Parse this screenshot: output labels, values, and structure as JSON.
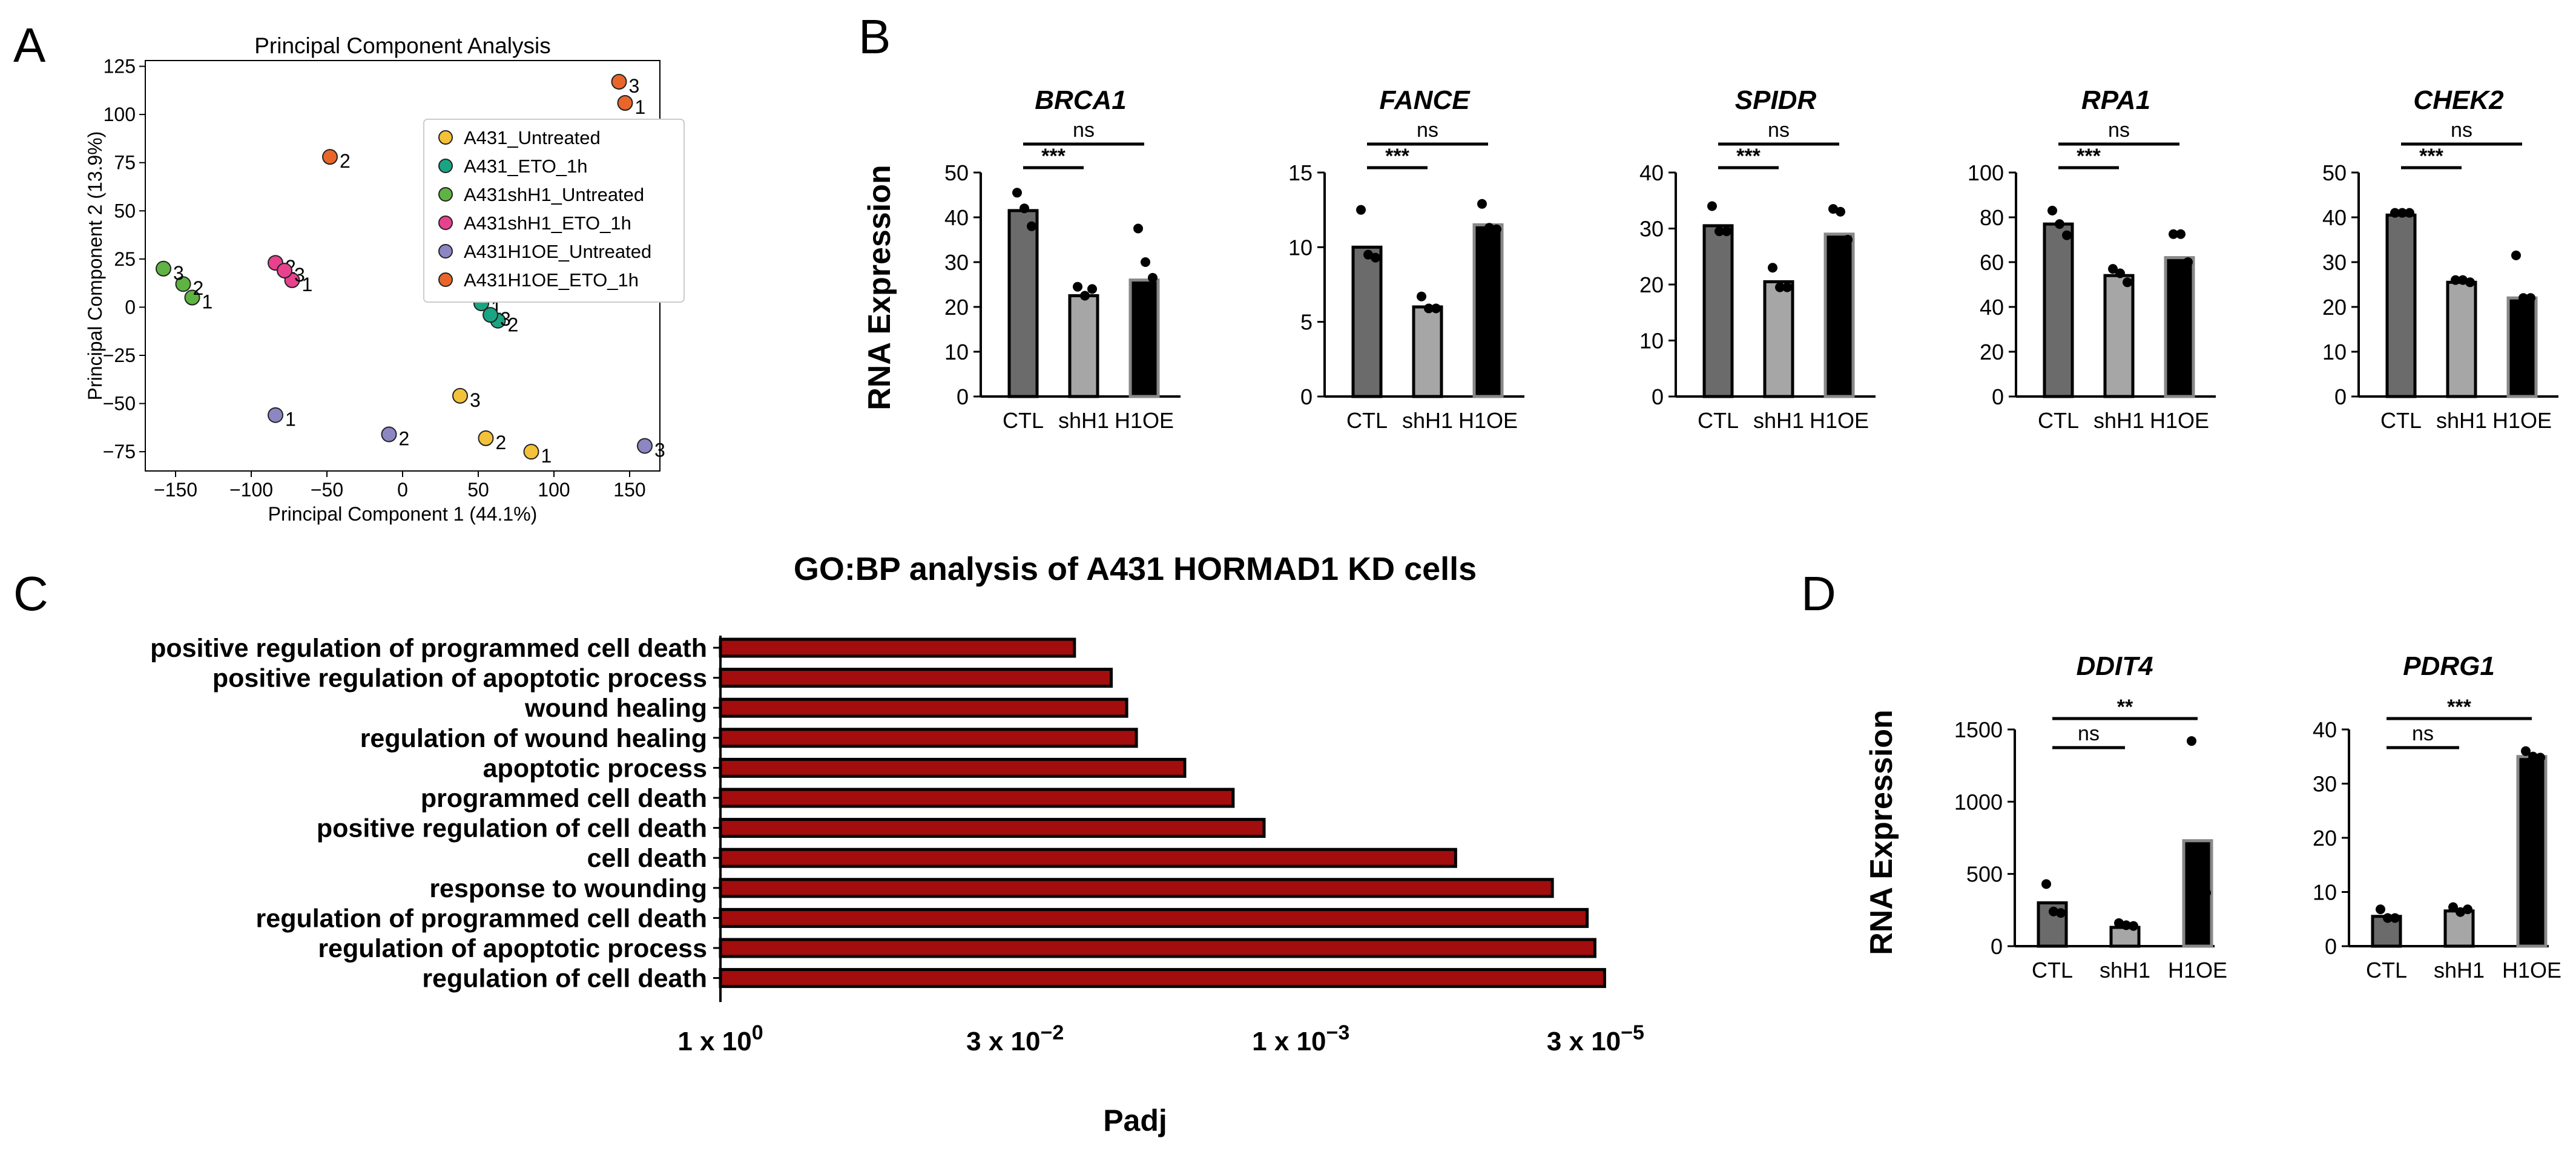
{
  "panel_letters": {
    "a": "A",
    "b": "B",
    "c": "C",
    "d": "D"
  },
  "chart_data": [
    {
      "type": "scatter",
      "id": "pca",
      "title": "Principal Component Analysis",
      "xlabel": "Principal Component 1 (44.1%)",
      "ylabel": "Principal Component 2 (13.9%)",
      "xlim": [
        -170,
        170
      ],
      "ylim": [
        -85,
        128
      ],
      "xticks": [
        -150,
        -100,
        -50,
        0,
        50,
        100,
        150
      ],
      "yticks": [
        125,
        100,
        75,
        50,
        25,
        0,
        -25,
        -50,
        -75
      ],
      "legend_position": "upper-right",
      "series": [
        {
          "name": "A431_Untreated",
          "color": "#f4c13a",
          "points": [
            {
              "x": 85,
              "y": -75,
              "label": "1"
            },
            {
              "x": 55,
              "y": -68,
              "label": "2"
            },
            {
              "x": 38,
              "y": -46,
              "label": "3"
            }
          ]
        },
        {
          "name": "A431_ETO_1h",
          "color": "#1aa582",
          "points": [
            {
              "x": 52,
              "y": 2,
              "label": "1"
            },
            {
              "x": 63,
              "y": -7,
              "label": "2"
            },
            {
              "x": 58,
              "y": -4,
              "label": "3"
            }
          ]
        },
        {
          "name": "A431shH1_Untreated",
          "color": "#5fb343",
          "points": [
            {
              "x": -139,
              "y": 5,
              "label": "1"
            },
            {
              "x": -145,
              "y": 12,
              "label": "2"
            },
            {
              "x": -158,
              "y": 20,
              "label": "3"
            }
          ]
        },
        {
          "name": "A431shH1_ETO_1h",
          "color": "#e8428e",
          "points": [
            {
              "x": -73,
              "y": 14,
              "label": "1"
            },
            {
              "x": -84,
              "y": 23,
              "label": "2"
            },
            {
              "x": -78,
              "y": 19,
              "label": "3"
            }
          ]
        },
        {
          "name": "A431H1OE_Untreated",
          "color": "#8c86c2",
          "points": [
            {
              "x": -84,
              "y": -56,
              "label": "1"
            },
            {
              "x": -9,
              "y": -66,
              "label": "2"
            },
            {
              "x": 160,
              "y": -72,
              "label": "3"
            }
          ]
        },
        {
          "name": "A431H1OE_ETO_1h",
          "color": "#e8662a",
          "points": [
            {
              "x": 147,
              "y": 106,
              "label": "1"
            },
            {
              "x": -48,
              "y": 78,
              "label": "2"
            },
            {
              "x": 143,
              "y": 117,
              "label": "3"
            }
          ]
        }
      ]
    },
    {
      "type": "bar",
      "id": "rna_b",
      "panel": "B",
      "ylabel": "RNA Expression",
      "categories": [
        "CTL",
        "shH1",
        "H1OE"
      ],
      "genes": [
        {
          "name": "BRCA1",
          "ymax": 50,
          "yticks": [
            0,
            10,
            20,
            30,
            40,
            50
          ],
          "values": [
            41.5,
            22.5,
            26
          ],
          "points": [
            [
              45.5,
              42,
              38
            ],
            [
              24.5,
              22.5,
              24
            ],
            [
              37.5,
              30,
              26.5
            ]
          ],
          "comparisons": [
            {
              "label": "***",
              "to": 1
            },
            {
              "label": "ns",
              "to": 2
            }
          ]
        },
        {
          "name": "FANCE",
          "ymax": 15,
          "yticks": [
            0,
            5,
            10,
            15
          ],
          "values": [
            10,
            6,
            11.5
          ],
          "points": [
            [
              12.5,
              9.5,
              9.3
            ],
            [
              6.7,
              5.9,
              5.9
            ],
            [
              12.9,
              11.3,
              11.2
            ]
          ],
          "comparisons": [
            {
              "label": "***",
              "to": 1
            },
            {
              "label": "ns",
              "to": 2
            }
          ]
        },
        {
          "name": "SPIDR",
          "ymax": 40,
          "yticks": [
            0,
            10,
            20,
            30,
            40
          ],
          "values": [
            30.5,
            20.5,
            29
          ],
          "points": [
            [
              34,
              29.5,
              29.5
            ],
            [
              23,
              19.5,
              19.5
            ],
            [
              33.5,
              33,
              28
            ]
          ],
          "comparisons": [
            {
              "label": "***",
              "to": 1
            },
            {
              "label": "ns",
              "to": 2
            }
          ]
        },
        {
          "name": "RPA1",
          "ymax": 100,
          "yticks": [
            0,
            20,
            40,
            60,
            80,
            100
          ],
          "values": [
            77,
            54,
            62
          ],
          "points": [
            [
              83,
              77,
              72
            ],
            [
              57,
              55,
              51
            ],
            [
              72.5,
              72.5,
              60
            ]
          ],
          "comparisons": [
            {
              "label": "***",
              "to": 1
            },
            {
              "label": "ns",
              "to": 2
            }
          ]
        },
        {
          "name": "CHEK2",
          "ymax": 50,
          "yticks": [
            0,
            10,
            20,
            30,
            40,
            50
          ],
          "values": [
            40.5,
            25.5,
            22
          ],
          "points": [
            [
              41,
              41,
              41
            ],
            [
              26,
              26,
              25.5
            ],
            [
              31.5,
              22,
              22
            ]
          ],
          "comparisons": [
            {
              "label": "***",
              "to": 1
            },
            {
              "label": "ns",
              "to": 2
            }
          ]
        }
      ]
    },
    {
      "type": "hbar",
      "id": "go",
      "title": "GO:BP analysis of A431 HORMAD1 KD cells",
      "xlabel": "Padj",
      "xscale": "-log10",
      "xlim_exp": [
        0,
        4.6
      ],
      "xticks": [
        {
          "exp": 0,
          "base": "1 x 10",
          "sup": "0"
        },
        {
          "exp": 1.523,
          "base": "3 x 10",
          "sup": "−2"
        },
        {
          "exp": 3,
          "base": "1 x 10",
          "sup": "−3"
        },
        {
          "exp": 4.523,
          "base": "3 x 10",
          "sup": "−5"
        }
      ],
      "categories": [
        "positive regulation of programmed cell death",
        "positive regulation of apoptotic process",
        "wound healing",
        "regulation of wound healing",
        "apoptotic process",
        "programmed cell death",
        "positive regulation of cell death",
        "cell death",
        "response to wounding",
        "regulation of programmed cell death",
        "regulation of apoptotic process",
        "regulation of cell death"
      ],
      "values_neglog10": [
        1.83,
        2.02,
        2.1,
        2.15,
        2.4,
        2.65,
        2.81,
        3.8,
        4.3,
        4.48,
        4.52,
        4.57
      ],
      "bar_color": "#a30d0d"
    },
    {
      "type": "bar",
      "id": "rna_d",
      "panel": "D",
      "ylabel": "RNA Expression",
      "categories": [
        "CTL",
        "shH1",
        "H1OE"
      ],
      "genes": [
        {
          "name": "DDIT4",
          "ymax": 1500,
          "yticks": [
            0,
            500,
            1000,
            1500
          ],
          "values": [
            300,
            130,
            730
          ],
          "points": [
            [
              430,
              240,
              230
            ],
            [
              160,
              145,
              140
            ],
            [
              1420,
              380,
              370
            ]
          ],
          "comparisons": [
            {
              "label": "ns",
              "to": 1
            },
            {
              "label": "**",
              "to": 2
            }
          ]
        },
        {
          "name": "PDRG1",
          "ymax": 40,
          "yticks": [
            0,
            10,
            20,
            30,
            40
          ],
          "values": [
            5.5,
            6.5,
            35
          ],
          "points": [
            [
              6.8,
              5.2,
              5.2
            ],
            [
              7.2,
              6.3,
              6.8
            ],
            [
              36,
              35,
              34.8
            ]
          ],
          "comparisons": [
            {
              "label": "ns",
              "to": 1
            },
            {
              "label": "***",
              "to": 2
            }
          ]
        }
      ]
    }
  ]
}
